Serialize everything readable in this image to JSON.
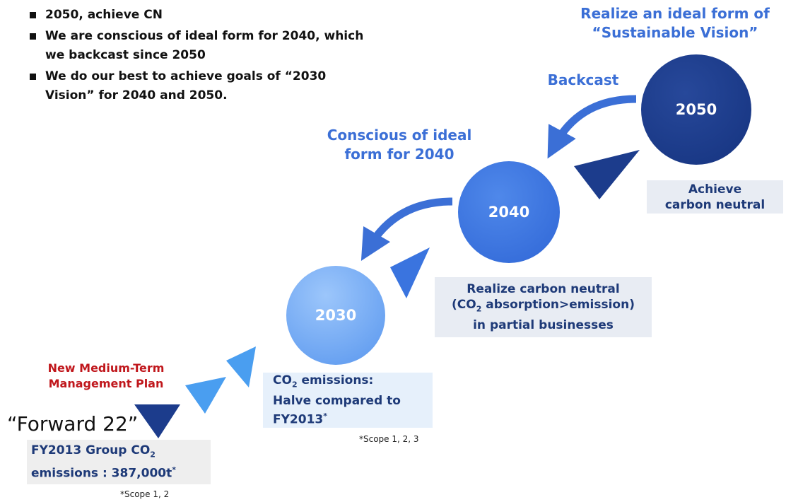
{
  "bullets": [
    "2050, achieve CN",
    "We are conscious of ideal form for 2040, which we backcast since 2050",
    "We do our best to achieve goals of “2030 Vision” for 2040 and 2050."
  ],
  "vision_heading": [
    "Realize an ideal form of",
    "“Sustainable Vision”"
  ],
  "backcast_label": "Backcast",
  "conscious_label": [
    "Conscious of ideal",
    "form for 2040"
  ],
  "circles": [
    "2050",
    "2040",
    "2030"
  ],
  "box_2050": [
    "Achieve",
    "carbon neutral"
  ],
  "box_2040": [
    "Realize carbon neutral",
    [
      "(CO",
      "2",
      " absorption>emission)"
    ],
    "in partial businesses"
  ],
  "box_2030": [
    [
      "CO",
      "2",
      " emissions:"
    ],
    "Halve compared to",
    [
      "FY2013",
      "*"
    ]
  ],
  "note_2030": "*Scope 1, 2, 3",
  "plan_label": [
    "New Medium-Term",
    "Management Plan"
  ],
  "forward_label": "“Forward 22”",
  "box_forward": [
    [
      "FY2013 Group CO",
      "2"
    ],
    [
      "emissions : 387,000t",
      "*"
    ]
  ],
  "note_forward": "*Scope 1, 2"
}
